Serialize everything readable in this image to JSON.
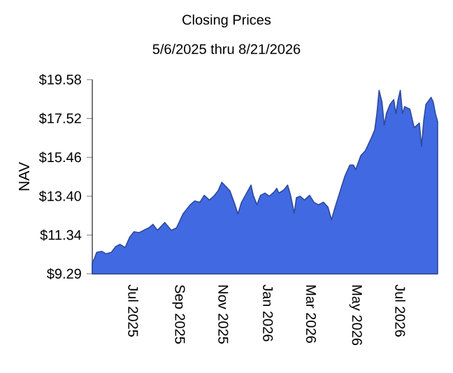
{
  "chart_data": {
    "type": "area",
    "title": "Closing Prices",
    "subtitle": "5/6/2025 thru 8/21/2026",
    "ylabel": "NAV",
    "xlim": [
      "2025-05-06",
      "2026-08-21"
    ],
    "xticks": [
      {
        "value": "2025-07-01",
        "label": "Jul 2025"
      },
      {
        "value": "2025-09-01",
        "label": "Sep 2025"
      },
      {
        "value": "2025-11-01",
        "label": "Nov 2025"
      },
      {
        "value": "2026-01-01",
        "label": "Jan 2026"
      },
      {
        "value": "2026-03-01",
        "label": "Mar 2026"
      },
      {
        "value": "2026-05-01",
        "label": "May 2026"
      },
      {
        "value": "2026-07-01",
        "label": "Jul 2026"
      }
    ],
    "ylim": [
      9.29,
      19.58
    ],
    "yticks": [
      {
        "value": 9.29,
        "label": "$9.29"
      },
      {
        "value": 11.34,
        "label": "$11.34"
      },
      {
        "value": 13.4,
        "label": "$13.40"
      },
      {
        "value": 15.46,
        "label": "$15.46"
      },
      {
        "value": 17.52,
        "label": "$17.52"
      },
      {
        "value": 19.58,
        "label": "$19.58"
      }
    ],
    "x": [
      "2025-05-06",
      "2025-05-09",
      "2025-05-12",
      "2025-05-19",
      "2025-05-25",
      "2025-06-01",
      "2025-06-07",
      "2025-06-13",
      "2025-06-20",
      "2025-06-26",
      "2025-07-02",
      "2025-07-09",
      "2025-07-15",
      "2025-07-22",
      "2025-07-28",
      "2025-08-03",
      "2025-08-13",
      "2025-08-22",
      "2025-08-29",
      "2025-09-01",
      "2025-09-07",
      "2025-09-17",
      "2025-09-23",
      "2025-09-30",
      "2025-10-06",
      "2025-10-13",
      "2025-10-19",
      "2025-10-25",
      "2025-10-30",
      "2025-11-04",
      "2025-11-10",
      "2025-11-17",
      "2025-11-21",
      "2025-11-26",
      "2025-12-03",
      "2025-12-09",
      "2025-12-12",
      "2025-12-17",
      "2025-12-22",
      "2025-12-28",
      "2026-01-03",
      "2026-01-10",
      "2026-01-13",
      "2026-01-16",
      "2026-01-23",
      "2026-01-28",
      "2026-02-01",
      "2026-02-06",
      "2026-02-09",
      "2026-02-14",
      "2026-02-20",
      "2026-02-27",
      "2026-03-05",
      "2026-03-11",
      "2026-03-18",
      "2026-03-24",
      "2026-03-29",
      "2026-04-03",
      "2026-04-09",
      "2026-04-16",
      "2026-04-23",
      "2026-04-28",
      "2026-05-01",
      "2026-05-08",
      "2026-05-14",
      "2026-05-17",
      "2026-05-23",
      "2026-05-27",
      "2026-05-30",
      "2026-06-02",
      "2026-06-06",
      "2026-06-09",
      "2026-06-12",
      "2026-06-17",
      "2026-06-22",
      "2026-06-25",
      "2026-06-28",
      "2026-07-01",
      "2026-07-04",
      "2026-07-07",
      "2026-07-14",
      "2026-07-20",
      "2026-07-27",
      "2026-07-30",
      "2026-08-02",
      "2026-08-05",
      "2026-08-12",
      "2026-08-15",
      "2026-08-18",
      "2026-08-21"
    ],
    "series": [
      {
        "color": "#4169e1",
        "values": [
          9.86,
          10.11,
          10.43,
          10.48,
          10.35,
          10.43,
          10.73,
          10.85,
          10.68,
          11.22,
          11.52,
          11.47,
          11.59,
          11.72,
          11.91,
          11.59,
          12.01,
          11.59,
          11.72,
          11.96,
          12.46,
          12.95,
          13.15,
          13.08,
          13.45,
          13.2,
          13.4,
          13.69,
          14.14,
          13.94,
          13.69,
          12.95,
          12.46,
          13.08,
          13.57,
          13.99,
          13.45,
          12.95,
          13.45,
          13.57,
          13.4,
          13.64,
          13.82,
          13.57,
          13.74,
          13.99,
          13.45,
          12.51,
          13.32,
          13.4,
          13.2,
          13.45,
          13.08,
          12.95,
          13.08,
          12.83,
          12.16,
          12.83,
          13.57,
          14.44,
          15.05,
          15.05,
          14.81,
          15.55,
          15.8,
          16.04,
          16.54,
          16.91,
          17.78,
          19.01,
          18.39,
          17.16,
          17.78,
          18.27,
          18.52,
          17.78,
          18.52,
          19.01,
          17.78,
          18.15,
          18.02,
          17.03,
          17.28,
          16.04,
          17.41,
          18.27,
          18.64,
          18.39,
          17.78,
          17.36
        ]
      }
    ]
  }
}
